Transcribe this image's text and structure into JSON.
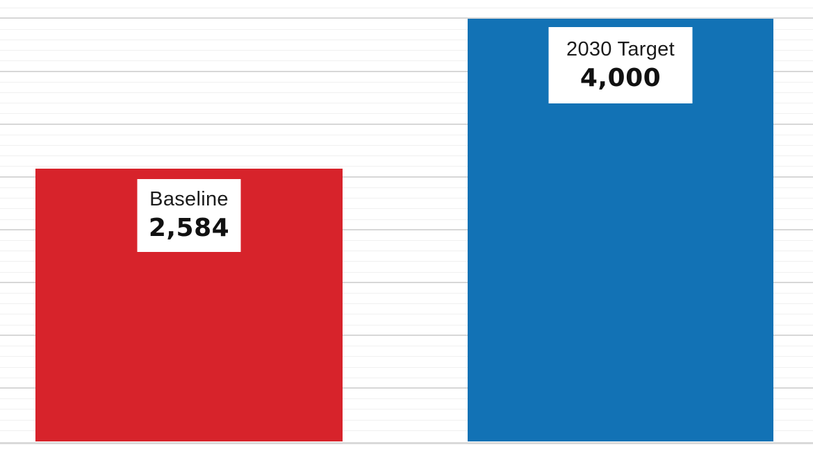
{
  "chart_data": {
    "type": "bar",
    "categories": [
      "Baseline",
      "2030 Target"
    ],
    "values": [
      2584,
      4000
    ],
    "value_labels": [
      "2,584",
      "4,000"
    ],
    "title": "",
    "xlabel": "",
    "ylabel": "",
    "ylim": [
      0,
      4180
    ],
    "gridlines": {
      "minor_step": 100,
      "major_step": 500,
      "visible": true
    },
    "legend_position": "none",
    "bar_colors": [
      "#d7232b",
      "#1272b5"
    ]
  },
  "bars": [
    {
      "label": "Baseline",
      "value_text": "2,584",
      "color": "#d7232b"
    },
    {
      "label": "2030 Target",
      "value_text": "4,000",
      "color": "#1272b5"
    }
  ],
  "colors": {
    "background": "#ffffff",
    "bar_baseline": "#d7232b",
    "bar_target": "#1272b5",
    "gridline_minor": "#f0f0f0",
    "gridline_major": "#d7d7d7",
    "axis_line": "#d9d9d9",
    "label_box_bg": "#ffffff",
    "label_text": "#1b1b1b"
  }
}
